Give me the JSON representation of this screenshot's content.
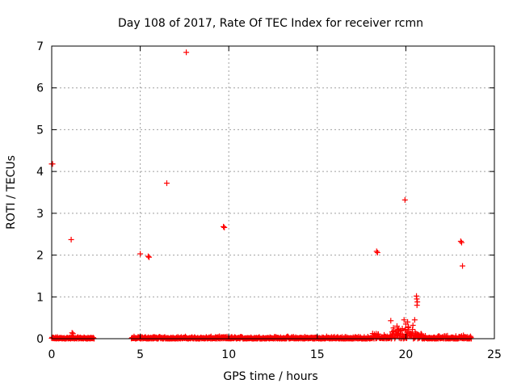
{
  "chart_data": {
    "type": "scatter",
    "title": "Day 108 of 2017, Rate Of TEC Index for receiver rcmn",
    "xlabel": "GPS time / hours",
    "ylabel": "ROTI / TECUs",
    "xlim": [
      0,
      25
    ],
    "ylim": [
      0,
      7
    ],
    "xticks": [
      0,
      5,
      10,
      15,
      20,
      25
    ],
    "yticks": [
      0,
      1,
      2,
      3,
      4,
      5,
      6,
      7
    ],
    "xtick_labels": [
      "0",
      "5",
      "10",
      "15",
      "20",
      "25"
    ],
    "ytick_labels": [
      "0",
      "1",
      "2",
      "3",
      "4",
      "5",
      "6",
      "7"
    ],
    "grid": true,
    "marker": "plus",
    "series": [
      {
        "color": "#ff0000",
        "points": [
          [
            0.0,
            4.18
          ],
          [
            0.05,
            4.18
          ],
          [
            1.1,
            2.37
          ],
          [
            1.15,
            0.14
          ],
          [
            1.2,
            0.12
          ],
          [
            5.0,
            2.03
          ],
          [
            5.45,
            1.97
          ],
          [
            5.5,
            1.95
          ],
          [
            6.5,
            3.72
          ],
          [
            7.6,
            6.85
          ],
          [
            9.7,
            2.68
          ],
          [
            9.75,
            2.66
          ],
          [
            18.35,
            2.09
          ],
          [
            18.4,
            2.06
          ],
          [
            19.15,
            0.43
          ],
          [
            19.5,
            0.3
          ],
          [
            19.6,
            0.22
          ],
          [
            19.9,
            0.45
          ],
          [
            19.95,
            3.32
          ],
          [
            20.0,
            0.35
          ],
          [
            20.1,
            0.4
          ],
          [
            20.4,
            0.32
          ],
          [
            20.5,
            0.45
          ],
          [
            20.6,
            1.02
          ],
          [
            20.62,
            0.95
          ],
          [
            20.65,
            0.88
          ],
          [
            20.63,
            0.8
          ],
          [
            23.1,
            2.33
          ],
          [
            23.15,
            2.3
          ],
          [
            23.2,
            1.74
          ],
          [
            23.25,
            0.08
          ]
        ],
        "dense_bands": [
          {
            "x_from": 0.0,
            "x_to": 2.4,
            "y_from": 0.0,
            "y_to": 0.05
          },
          {
            "x_from": 4.5,
            "x_to": 18.0,
            "y_from": 0.0,
            "y_to": 0.06
          },
          {
            "x_from": 18.0,
            "x_to": 19.2,
            "y_from": 0.0,
            "y_to": 0.15
          },
          {
            "x_from": 19.2,
            "x_to": 20.9,
            "y_from": 0.0,
            "y_to": 0.35
          },
          {
            "x_from": 20.9,
            "x_to": 23.7,
            "y_from": 0.0,
            "y_to": 0.08
          }
        ]
      }
    ]
  }
}
